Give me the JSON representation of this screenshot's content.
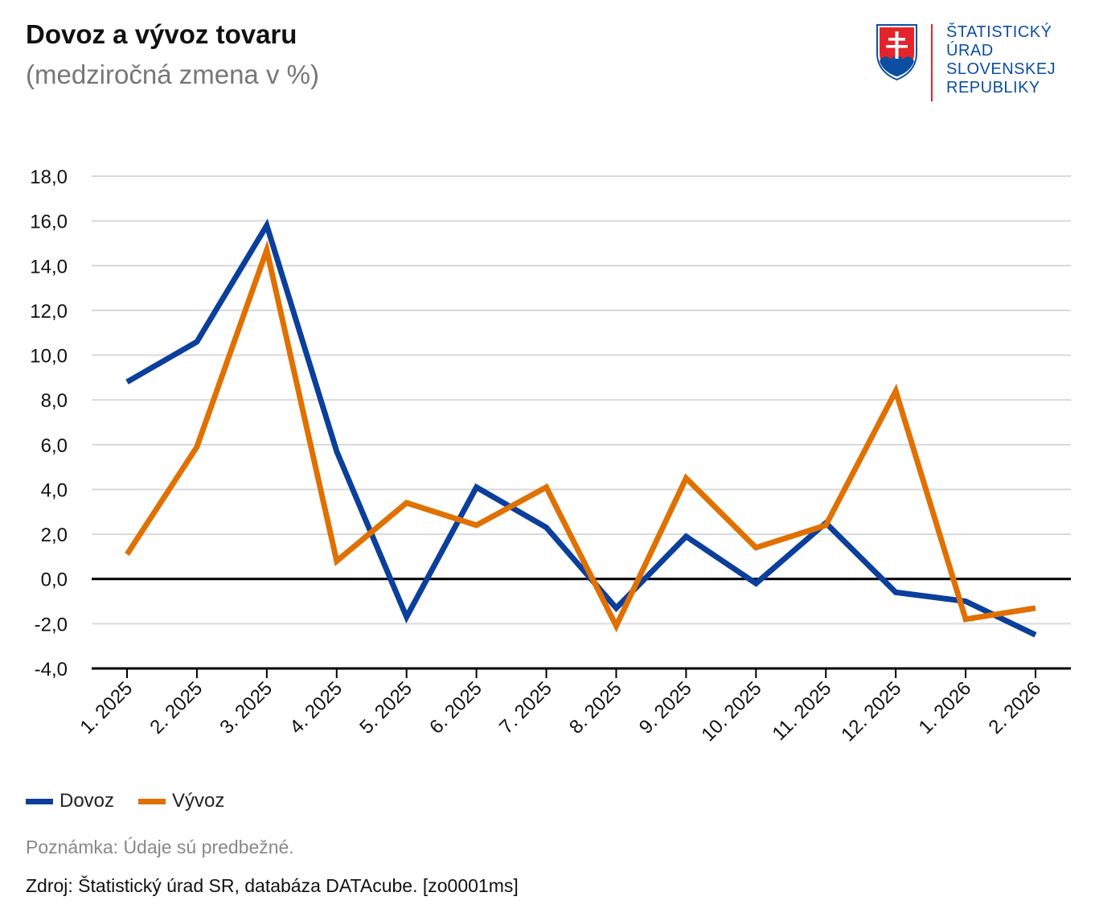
{
  "header": {
    "title": "Dovoz a vývoz tovaru",
    "subtitle": "(medziročná zmena v %)"
  },
  "logo": {
    "lines": [
      "ŠTATISTICKÝ",
      "ÚRAD",
      "SLOVENSKEJ",
      "REPUBLIKY"
    ],
    "text_color": "#0b4ea2",
    "accent_color": "#e4242b"
  },
  "chart_data": {
    "type": "line",
    "title": "Dovoz a vývoz tovaru",
    "subtitle": "(medziročná zmena v %)",
    "xlabel": "",
    "ylabel": "",
    "categories": [
      "1. 2025",
      "2. 2025",
      "3. 2025",
      "4. 2025",
      "5. 2025",
      "6. 2025",
      "7. 2025",
      "8. 2025",
      "9. 2025",
      "10. 2025",
      "11. 2025",
      "12. 2025",
      "1. 2026",
      "2. 2026"
    ],
    "ylim": [
      -4,
      18
    ],
    "yticks": [
      -4,
      -2,
      0,
      2,
      4,
      6,
      8,
      10,
      12,
      14,
      16,
      18
    ],
    "ytick_labels": [
      "-4,0",
      "-2,0",
      "0,0",
      "2,0",
      "4,0",
      "6,0",
      "8,0",
      "10,0",
      "12,0",
      "14,0",
      "16,0",
      "18,0"
    ],
    "grid": true,
    "legend_position": "bottom-left",
    "series": [
      {
        "name": "Dovoz",
        "color": "#0b3f9c",
        "values": [
          8.8,
          10.6,
          15.8,
          5.7,
          -1.7,
          4.1,
          2.3,
          -1.3,
          1.9,
          -0.2,
          2.5,
          -0.6,
          -1.0,
          -2.5
        ]
      },
      {
        "name": "Vývoz",
        "color": "#e07000",
        "values": [
          1.1,
          5.9,
          14.7,
          0.8,
          3.4,
          2.4,
          4.1,
          -2.1,
          4.5,
          1.4,
          2.4,
          8.4,
          -1.8,
          -1.3
        ]
      }
    ]
  },
  "footer": {
    "note": "Poznámka: Údaje sú predbežné.",
    "source": "Zdroj: Štatistický úrad SR, databáza DATAcube. [zo0001ms]"
  }
}
